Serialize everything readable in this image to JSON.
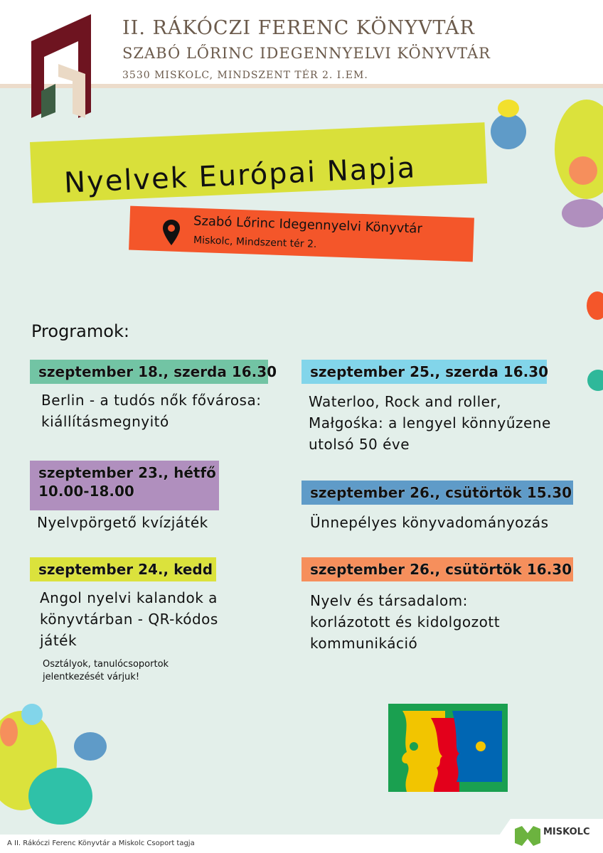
{
  "header": {
    "line1": "II. RÁKÓCZI FERENC KÖNYVTÁR",
    "line2": "SZABÓ LŐRINC IDEGENNYELVI KÖNYVTÁR",
    "line3": "3530 MISKOLC, MINDSZENT TÉR 2. I.EM."
  },
  "title": "Nyelvek Európai Napja",
  "location": {
    "icon": "map-pin-icon",
    "name": "Szabó Lőrinc Idegennyelvi Könyvtár",
    "address": "Miskolc, Mindszent tér 2."
  },
  "programs_label": "Programok:",
  "programs": [
    {
      "date": "szeptember 18., szerda 16.30",
      "desc": [
        "Berlin - a tudós nők fővárosa:",
        "kiállításmegnyitó"
      ],
      "color": "#72c4a4"
    },
    {
      "date": "szeptember 23., hétfő",
      "date2": "10.00-18.00",
      "desc": [
        "Nyelvpörgető kvízjáték"
      ],
      "color": "#b08fbe"
    },
    {
      "date": "szeptember 24., kedd",
      "desc": [
        "Angol nyelvi kalandok a",
        "könyvtárban - QR-kódos",
        "játék"
      ],
      "note": [
        "Osztályok, tanulócsoportok",
        "jelentkezését várjuk!"
      ],
      "color": "#dbe23c"
    },
    {
      "date": "szeptember 25., szerda 16.30",
      "desc": [
        "Waterloo, Rock and roller,",
        "Małgośka: a lengyel könnyűzene",
        "utolsó 50 éve"
      ],
      "color": "#82d5ea"
    },
    {
      "date": "szeptember 26., csütörtök 15.30",
      "desc": [
        "Ünnepélyes könyvadományozás"
      ],
      "color": "#5f9bc8"
    },
    {
      "date": "szeptember 26., csütörtök 16.30",
      "desc": [
        "Nyelv és társadalom:",
        "korlázotott és kidolgozott",
        "kommunikáció"
      ],
      "color": "#f68f5c"
    }
  ],
  "footer": {
    "text": "A II. Rákóczi Ferenc Könyvtár a Miskolc Csoport tagja",
    "brand": "MISKOLC"
  }
}
